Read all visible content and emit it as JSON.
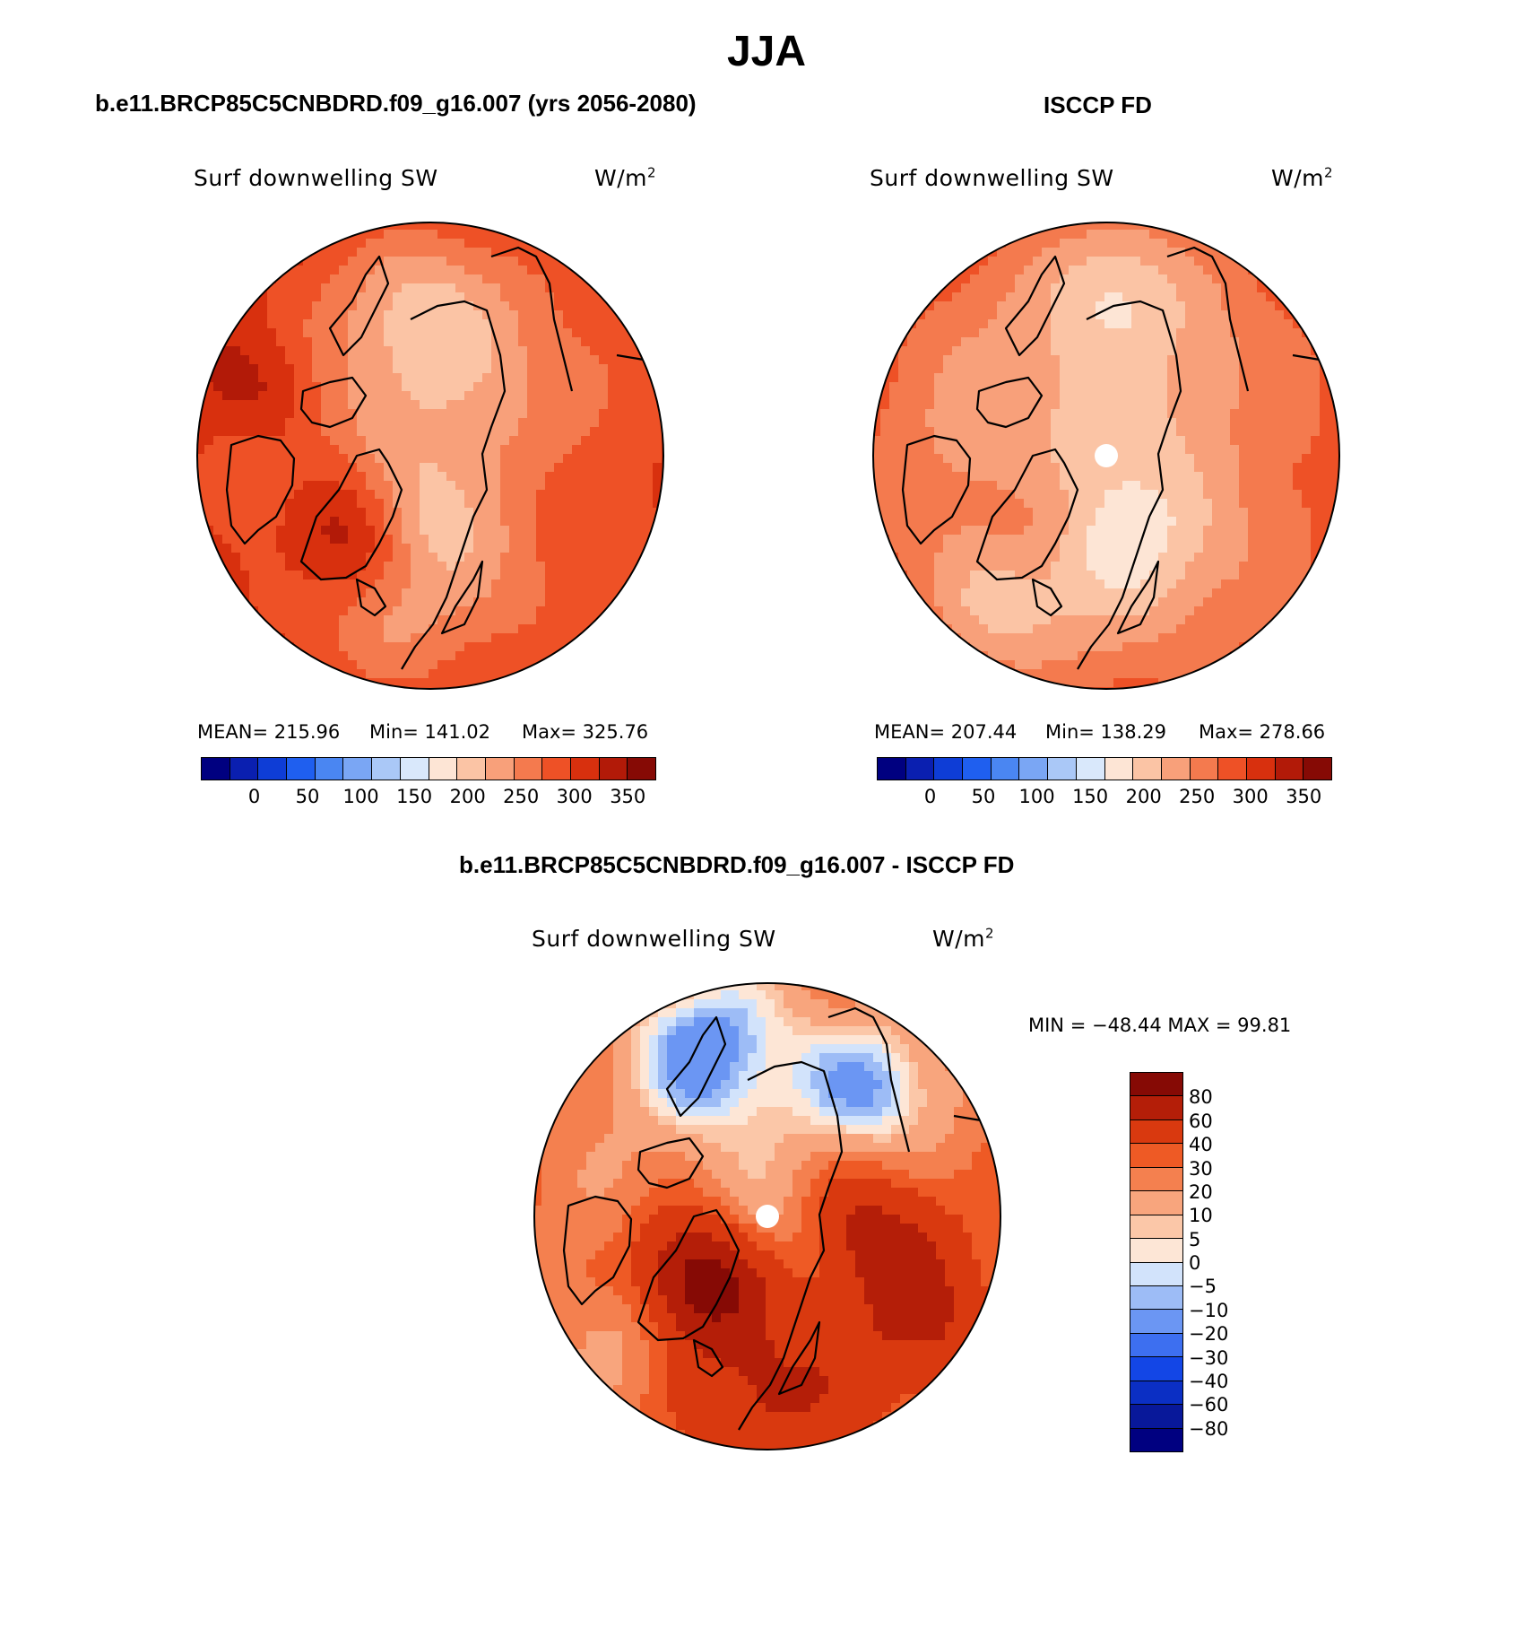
{
  "figure": {
    "title": "JJA"
  },
  "colors": {
    "abs_scale": [
      "#000080",
      "#0a1fb0",
      "#0e3dd6",
      "#1f5fef",
      "#4a86f2",
      "#7aa6f4",
      "#aac8f7",
      "#d9e8fb",
      "#fde5d5",
      "#fbc4a5",
      "#f8a07a",
      "#f47a4e",
      "#ee5126",
      "#d8300e",
      "#b21a08",
      "#860a05"
    ],
    "diff_scale": [
      "#000080",
      "#08189a",
      "#0b2fc4",
      "#1346e6",
      "#3d6ff0",
      "#6b96f3",
      "#9dbcf6",
      "#d2e3fb",
      "#fde6d6",
      "#fbc7a8",
      "#f8a57d",
      "#f4804f",
      "#ee5a25",
      "#d9390f",
      "#b41e08",
      "#860a05"
    ]
  },
  "chart_data": [
    {
      "type": "heatmap",
      "projection": "north-polar-stereographic",
      "panel_title": "b.e11.BRCP85C5CNBDRD.f09_g16.007 (yrs 2056-2080)",
      "variable": "Surf downwelling SW",
      "units_base": "W/m",
      "units_exp": "2",
      "mean_text": "MEAN= 215.96",
      "min_text": "Min= 141.02",
      "max_text": "Max= 325.76",
      "mean": 215.96,
      "min": 141.02,
      "max": 325.76,
      "colorbar_ticks": [
        "0",
        "50",
        "100",
        "150",
        "200",
        "250",
        "300",
        "350"
      ],
      "colorbar_tick_values": [
        0,
        50,
        100,
        150,
        200,
        250,
        300,
        350
      ],
      "colorbar_range": [
        -50,
        375
      ],
      "pole_missing": false,
      "field": {
        "base": 215,
        "center_shift": 10,
        "rim_gain": 55,
        "blobs": [
          [
            -0.35,
            0.32,
            0.22,
            95
          ],
          [
            -0.05,
            0.3,
            0.2,
            -45
          ],
          [
            0.0,
            -0.62,
            0.22,
            -50
          ],
          [
            -0.72,
            -0.28,
            0.2,
            55
          ],
          [
            0.55,
            0.15,
            0.22,
            35
          ],
          [
            -0.2,
            0.75,
            0.2,
            -25
          ]
        ]
      }
    },
    {
      "type": "heatmap",
      "projection": "north-polar-stereographic",
      "panel_title": "ISCCP FD",
      "variable": "Surf downwelling SW",
      "units_base": "W/m",
      "units_exp": "2",
      "mean_text": "MEAN= 207.44",
      "min_text": "Min= 138.29",
      "max_text": "Max= 278.66",
      "mean": 207.44,
      "min": 138.29,
      "max": 278.66,
      "colorbar_ticks": [
        "0",
        "50",
        "100",
        "150",
        "200",
        "250",
        "300",
        "350"
      ],
      "colorbar_tick_values": [
        0,
        50,
        100,
        150,
        200,
        250,
        300,
        350
      ],
      "colorbar_range": [
        -50,
        375
      ],
      "pole_missing": true,
      "field": {
        "base": 210,
        "center_shift": 20,
        "rim_gain": 40,
        "blobs": [
          [
            -0.3,
            0.28,
            0.2,
            45
          ],
          [
            0.05,
            0.35,
            0.22,
            -50
          ],
          [
            -0.45,
            0.65,
            0.2,
            -45
          ],
          [
            0.05,
            -0.72,
            0.2,
            -50
          ],
          [
            0.65,
            0.0,
            0.25,
            20
          ]
        ]
      }
    },
    {
      "type": "heatmap",
      "projection": "north-polar-stereographic",
      "panel_title": "b.e11.BRCP85C5CNBDRD.f09_g16.007 - ISCCP FD",
      "variable": "Surf downwelling SW",
      "units_base": "W/m",
      "units_exp": "2",
      "minmax_text": "MIN = −48.44 MAX =   99.81",
      "min": -48.44,
      "max": 99.81,
      "colorbar_ticks": [
        "80",
        "60",
        "40",
        "30",
        "20",
        "10",
        "5",
        "0",
        "−5",
        "−10",
        "−20",
        "−30",
        "−40",
        "−60",
        "−80"
      ],
      "colorbar_levels": [
        -80,
        -60,
        -40,
        -30,
        -20,
        -10,
        -5,
        0,
        5,
        10,
        20,
        30,
        40,
        60,
        80
      ],
      "pole_missing": true,
      "field": {
        "base": 8,
        "center_shift": -12,
        "rim_gain": 20,
        "blobs": [
          [
            -0.25,
            -0.72,
            0.25,
            -42
          ],
          [
            0.45,
            -0.55,
            0.22,
            -35
          ],
          [
            -0.3,
            0.28,
            0.2,
            75
          ],
          [
            0.45,
            0.05,
            0.22,
            40
          ],
          [
            0.0,
            0.05,
            0.18,
            -12
          ],
          [
            -0.55,
            0.45,
            0.2,
            -18
          ],
          [
            0.0,
            0.75,
            0.25,
            40
          ],
          [
            0.65,
            0.45,
            0.25,
            35
          ]
        ]
      }
    }
  ]
}
